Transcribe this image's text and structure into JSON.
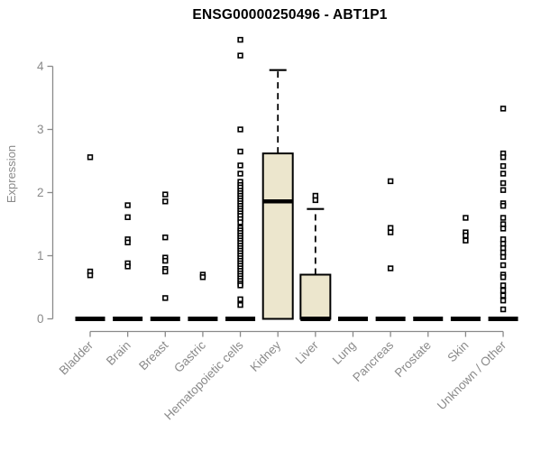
{
  "chart_data": {
    "type": "boxplot",
    "title": "ENSG00000250496 - ABT1P1",
    "ylabel": "Expression",
    "xlabel": "",
    "ylim": [
      0,
      4.6
    ],
    "yticks": [
      0,
      1,
      2,
      3,
      4
    ],
    "grid": false,
    "legend": "none",
    "colors": {
      "box_fill": "#ece6cd",
      "box_border": "#000000",
      "median": "#000000",
      "point": "#000000",
      "axis": "#8a8a8a",
      "title": "#000000",
      "background": "#ffffff"
    },
    "categories": [
      "Bladder",
      "Brain",
      "Breast",
      "Gastric",
      "Hematopoietic cells",
      "Kidney",
      "Liver",
      "Lung",
      "Pancreas",
      "Prostate",
      "Skin",
      "Unknown / Other"
    ],
    "series": [
      {
        "category": "Bladder",
        "box": {
          "q1": 0,
          "median": 0,
          "q3": 0,
          "whisker_low": 0,
          "whisker_high": 0
        },
        "outliers": [
          2.56,
          0.75,
          0.69
        ]
      },
      {
        "category": "Brain",
        "box": {
          "q1": 0,
          "median": 0,
          "q3": 0,
          "whisker_low": 0,
          "whisker_high": 0
        },
        "outliers": [
          1.8,
          1.61,
          1.26,
          1.21,
          0.88,
          0.83
        ]
      },
      {
        "category": "Breast",
        "box": {
          "q1": 0,
          "median": 0,
          "q3": 0,
          "whisker_low": 0,
          "whisker_high": 0
        },
        "outliers": [
          1.97,
          1.86,
          1.29,
          0.97,
          0.92,
          0.79,
          0.75,
          0.33
        ]
      },
      {
        "category": "Gastric",
        "box": {
          "q1": 0,
          "median": 0,
          "q3": 0,
          "whisker_low": 0,
          "whisker_high": 0
        },
        "outliers": [
          0.7,
          0.66
        ]
      },
      {
        "category": "Hematopoietic cells",
        "box": {
          "q1": 0,
          "median": 0,
          "q3": 0,
          "whisker_low": 0,
          "whisker_high": 0
        },
        "outliers": [
          4.42,
          4.17,
          3.0,
          2.65,
          2.43,
          2.3,
          2.17,
          2.12,
          2.08,
          2.03,
          1.99,
          1.95,
          1.91,
          1.87,
          1.83,
          1.79,
          1.75,
          1.71,
          1.67,
          1.63,
          1.58,
          1.53,
          1.44,
          1.4,
          1.36,
          1.32,
          1.28,
          1.24,
          1.2,
          1.16,
          1.12,
          1.08,
          1.04,
          1.0,
          0.96,
          0.92,
          0.88,
          0.84,
          0.8,
          0.76,
          0.72,
          0.68,
          0.64,
          0.6,
          0.56,
          0.53,
          0.31,
          0.22
        ]
      },
      {
        "category": "Kidney",
        "box": {
          "q1": 0,
          "median": 1.86,
          "q3": 2.62,
          "whisker_low": 0,
          "whisker_high": 3.94
        },
        "outliers": []
      },
      {
        "category": "Liver",
        "box": {
          "q1": 0,
          "median": 0,
          "q3": 0.7,
          "whisker_low": 0,
          "whisker_high": 1.74
        },
        "outliers": [
          1.95,
          1.88
        ]
      },
      {
        "category": "Lung",
        "box": {
          "q1": 0,
          "median": 0,
          "q3": 0,
          "whisker_low": 0,
          "whisker_high": 0
        },
        "outliers": []
      },
      {
        "category": "Pancreas",
        "box": {
          "q1": 0,
          "median": 0,
          "q3": 0,
          "whisker_low": 0,
          "whisker_high": 0
        },
        "outliers": [
          2.18,
          1.44,
          1.37,
          0.8
        ]
      },
      {
        "category": "Prostate",
        "box": {
          "q1": 0,
          "median": 0,
          "q3": 0,
          "whisker_low": 0,
          "whisker_high": 0
        },
        "outliers": []
      },
      {
        "category": "Skin",
        "box": {
          "q1": 0,
          "median": 0,
          "q3": 0,
          "whisker_low": 0,
          "whisker_high": 0
        },
        "outliers": [
          1.6,
          1.37,
          1.32,
          1.24
        ]
      },
      {
        "category": "Unknown / Other",
        "box": {
          "q1": 0,
          "median": 0,
          "q3": 0,
          "whisker_low": 0,
          "whisker_high": 0
        },
        "outliers": [
          3.33,
          2.62,
          2.56,
          2.42,
          2.3,
          2.15,
          2.04,
          1.83,
          1.79,
          1.6,
          1.5,
          1.43,
          1.26,
          1.19,
          1.12,
          1.05,
          0.98,
          0.85,
          0.7,
          0.66,
          0.53,
          0.45,
          0.37,
          0.29,
          0.15
        ]
      }
    ]
  }
}
